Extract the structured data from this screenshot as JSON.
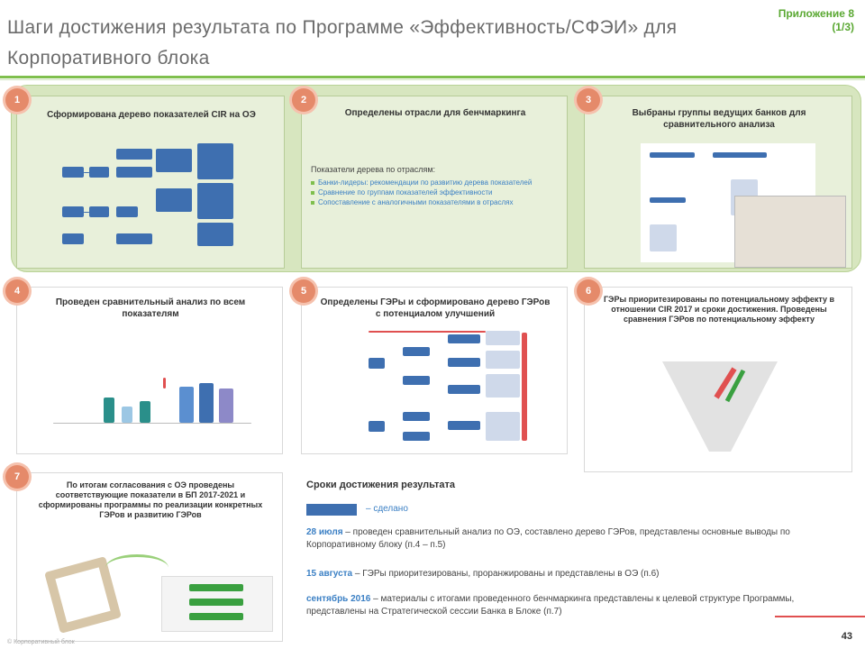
{
  "header": {
    "title": "Шаги достижения результата по Программе «Эффективность/СФЭИ» для Корпоративного блока",
    "appendix": "Приложение 8 (1/3)"
  },
  "steps": [
    {
      "num": "1",
      "title": "Сформирована дерево показателей CIR на ОЭ"
    },
    {
      "num": "2",
      "title": "Определены отрасли для бенчмаркинга"
    },
    {
      "num": "3",
      "title": "Выбраны группы ведущих банков для сравнительного анализа"
    },
    {
      "num": "4",
      "title": "Проведен сравнительный анализ по всем показателям"
    },
    {
      "num": "5",
      "title": "Определены ГЭРы и сформировано дерево ГЭРов с потенциалом улучшений"
    },
    {
      "num": "6",
      "title": "ГЭРы приоритезированы по потенциальному эффекту в отношении CIR 2017 и сроки достижения. Проведены сравнения ГЭРов по потенциальному эффекту"
    },
    {
      "num": "7",
      "title": "По итогам согласования с ОЭ проведены соответствующие показатели в БП 2017-2021 и сформированы программы по реализации конкретных ГЭРов и развитию ГЭРов"
    }
  ],
  "step2": {
    "lead": "Показатели дерева по отраслям:",
    "bullets": [
      "Банки-лидеры: рекомендации по развитию дерева показателей",
      "Сравнение по группам показателей эффективности",
      "Сопоставление с аналогичными показателями в отраслях"
    ]
  },
  "timeline": {
    "heading": "Сроки достижения результата",
    "legend": "– сделано",
    "items": [
      {
        "date": "28 июля",
        "text": " – проведен сравнительный анализ по ОЭ, составлено дерево ГЭРов, представлены основные выводы по Корпоративному блоку (п.4 – п.5)"
      },
      {
        "date": "15 августа",
        "text": " – ГЭРы приоритезированы, проранжированы и представлены в ОЭ (п.6)"
      },
      {
        "date": "сентябрь 2016",
        "text": " – материалы с итогами проведенного бенчмаркинга представлены к целевой структуре Программы, представлены на Стратегической сессии Банка в Блоке (п.7)"
      }
    ]
  },
  "page": {
    "number": "43",
    "footer": "© Корпоративный блок"
  },
  "colors": {
    "accent": "#7fbf4d",
    "badge": "#e58a6a",
    "blue": "#3a7fc4"
  }
}
